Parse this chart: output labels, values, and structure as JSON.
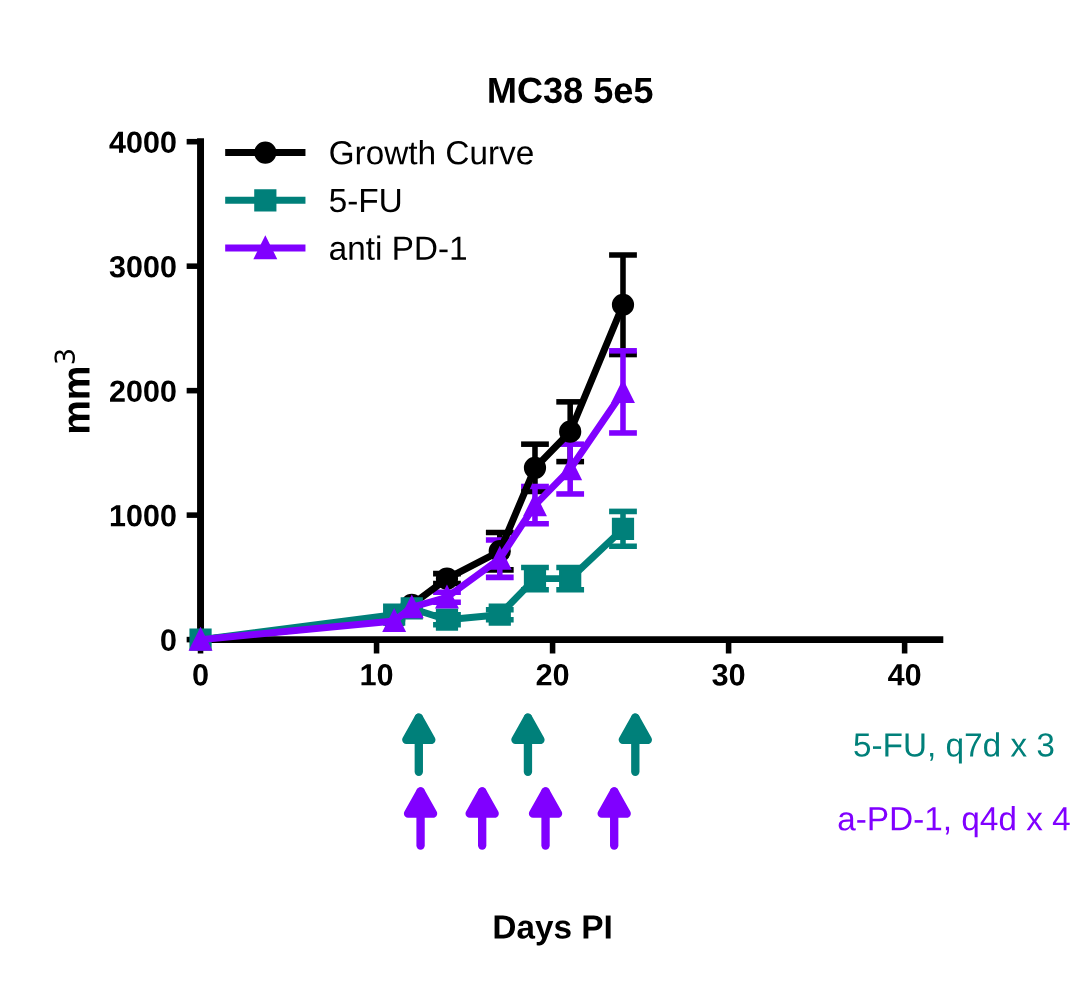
{
  "chart_data": {
    "type": "line",
    "title": "MC38 5e5",
    "ylabel": "mm$^{3}$",
    "x": [
      0,
      11,
      12,
      14,
      17,
      19,
      21,
      24
    ],
    "series": [
      {
        "name": "Growth Curve",
        "color": "#000000",
        "marker": "circle",
        "values": [
          0,
          160,
          280,
          490,
          710,
          1380,
          1670,
          2690
        ],
        "errors": [
          null,
          null,
          null,
          40,
          150,
          190,
          240,
          400
        ]
      },
      {
        "name": "5-FU",
        "color": "#00807a",
        "marker": "square",
        "values": [
          0,
          200,
          250,
          160,
          200,
          490,
          490,
          890
        ],
        "errors": [
          null,
          null,
          null,
          40,
          40,
          90,
          90,
          140
        ]
      },
      {
        "name": "anti PD-1",
        "color": "#8000ff",
        "marker": "triangle",
        "values": [
          0,
          150,
          260,
          340,
          650,
          1080,
          1370,
          1990
        ],
        "errors": [
          null,
          null,
          null,
          40,
          150,
          150,
          200,
          330
        ]
      }
    ],
    "annotations": [
      "5-FU, q7d x 3",
      "a-PD-1, q4d x 4",
      "Days PI"
    ],
    "xlim": [
      0,
      42
    ],
    "xticks": [
      0,
      10,
      20,
      30,
      40
    ],
    "ylim": [
      0,
      4000
    ],
    "yticks": [
      0,
      1000,
      2000,
      3000,
      4000
    ],
    "grid": false,
    "legend": "top left",
    "line_style": "solid"
  }
}
